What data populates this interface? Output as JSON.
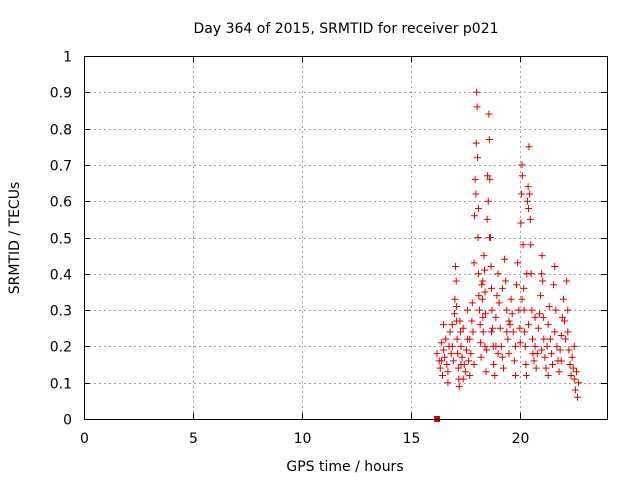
{
  "chart_data": {
    "type": "scatter",
    "title": "Day 364 of 2015, SRMTID for receiver p021",
    "xlabel": "GPS time / hours",
    "ylabel": "SRMTID / TECUs",
    "xlim": [
      0,
      24
    ],
    "ylim": [
      0,
      1
    ],
    "xticks": [
      0,
      5,
      10,
      15,
      20
    ],
    "yticks": [
      0,
      0.1,
      0.2,
      0.3,
      0.4,
      0.5,
      0.6,
      0.7,
      0.8,
      0.9,
      1
    ],
    "xtick_labels": [
      "0",
      "5",
      "10",
      "15",
      "20"
    ],
    "ytick_labels": [
      "0",
      "0.1",
      "0.2",
      "0.3",
      "0.4",
      "0.5",
      "0.6",
      "0.7",
      "0.8",
      "0.9",
      "1"
    ],
    "grid": true,
    "legend": "none",
    "marker": "+",
    "marker_color": "#e00000",
    "anchor_marker": {
      "x": 16.2,
      "y": 0.0,
      "shape": "square"
    },
    "points": [
      [
        16.2,
        0.18
      ],
      [
        16.3,
        0.16
      ],
      [
        16.35,
        0.14
      ],
      [
        16.4,
        0.21
      ],
      [
        16.45,
        0.12
      ],
      [
        16.5,
        0.19
      ],
      [
        16.55,
        0.17
      ],
      [
        16.6,
        0.22
      ],
      [
        16.65,
        0.15
      ],
      [
        16.7,
        0.13
      ],
      [
        16.75,
        0.2
      ],
      [
        16.8,
        0.24
      ],
      [
        16.85,
        0.18
      ],
      [
        16.9,
        0.26
      ],
      [
        16.95,
        0.16
      ],
      [
        17.0,
        0.29
      ],
      [
        17.02,
        0.33
      ],
      [
        17.05,
        0.42
      ],
      [
        17.08,
        0.38
      ],
      [
        17.1,
        0.31
      ],
      [
        17.12,
        0.22
      ],
      [
        17.15,
        0.18
      ],
      [
        17.18,
        0.14
      ],
      [
        17.2,
        0.11
      ],
      [
        17.22,
        0.09
      ],
      [
        17.25,
        0.27
      ],
      [
        17.28,
        0.24
      ],
      [
        17.3,
        0.2
      ],
      [
        17.35,
        0.17
      ],
      [
        17.4,
        0.25
      ],
      [
        17.45,
        0.15
      ],
      [
        17.5,
        0.13
      ],
      [
        17.55,
        0.19
      ],
      [
        17.6,
        0.22
      ],
      [
        17.65,
        0.16
      ],
      [
        17.7,
        0.12
      ],
      [
        17.75,
        0.18
      ],
      [
        17.8,
        0.27
      ],
      [
        17.82,
        0.32
      ],
      [
        17.85,
        0.24
      ],
      [
        17.9,
        0.43
      ],
      [
        17.92,
        0.56
      ],
      [
        17.95,
        0.66
      ],
      [
        17.98,
        0.62
      ],
      [
        18.0,
        0.76
      ],
      [
        18.02,
        0.9
      ],
      [
        18.04,
        0.86
      ],
      [
        18.06,
        0.72
      ],
      [
        18.08,
        0.5
      ],
      [
        18.1,
        0.4
      ],
      [
        18.12,
        0.34
      ],
      [
        18.15,
        0.3
      ],
      [
        18.18,
        0.26
      ],
      [
        18.2,
        0.21
      ],
      [
        18.22,
        0.17
      ],
      [
        18.25,
        0.37
      ],
      [
        18.28,
        0.33
      ],
      [
        18.3,
        0.28
      ],
      [
        18.32,
        0.24
      ],
      [
        18.35,
        0.45
      ],
      [
        18.38,
        0.41
      ],
      [
        18.4,
        0.35
      ],
      [
        18.42,
        0.29
      ],
      [
        18.45,
        0.13
      ],
      [
        18.48,
        0.19
      ],
      [
        18.5,
        0.55
      ],
      [
        18.52,
        0.67
      ],
      [
        18.55,
        0.6
      ],
      [
        18.58,
        0.84
      ],
      [
        18.6,
        0.77
      ],
      [
        18.62,
        0.66
      ],
      [
        18.65,
        0.5
      ],
      [
        18.68,
        0.42
      ],
      [
        18.7,
        0.36
      ],
      [
        18.72,
        0.3
      ],
      [
        18.75,
        0.25
      ],
      [
        18.78,
        0.2
      ],
      [
        18.8,
        0.15
      ],
      [
        18.85,
        0.12
      ],
      [
        18.9,
        0.28
      ],
      [
        18.95,
        0.34
      ],
      [
        19.0,
        0.4
      ],
      [
        19.05,
        0.32
      ],
      [
        19.1,
        0.25
      ],
      [
        19.15,
        0.2
      ],
      [
        19.2,
        0.17
      ],
      [
        19.25,
        0.14
      ],
      [
        19.3,
        0.44
      ],
      [
        19.35,
        0.38
      ],
      [
        19.4,
        0.3
      ],
      [
        19.45,
        0.22
      ],
      [
        19.5,
        0.18
      ],
      [
        19.55,
        0.26
      ],
      [
        19.6,
        0.33
      ],
      [
        19.65,
        0.29
      ],
      [
        19.7,
        0.24
      ],
      [
        19.75,
        0.16
      ],
      [
        19.8,
        0.2
      ],
      [
        19.85,
        0.37
      ],
      [
        19.9,
        0.43
      ],
      [
        19.95,
        0.3
      ],
      [
        20.0,
        0.25
      ],
      [
        20.02,
        0.21
      ],
      [
        20.05,
        0.54
      ],
      [
        20.08,
        0.62
      ],
      [
        20.1,
        0.7
      ],
      [
        20.12,
        0.67
      ],
      [
        20.15,
        0.48
      ],
      [
        20.18,
        0.36
      ],
      [
        20.2,
        0.3
      ],
      [
        20.22,
        0.24
      ],
      [
        20.25,
        0.2
      ],
      [
        20.28,
        0.15
      ],
      [
        20.3,
        0.12
      ],
      [
        20.32,
        0.4
      ],
      [
        20.35,
        0.6
      ],
      [
        20.38,
        0.64
      ],
      [
        20.4,
        0.58
      ],
      [
        20.42,
        0.75
      ],
      [
        20.45,
        0.62
      ],
      [
        20.48,
        0.55
      ],
      [
        20.5,
        0.48
      ],
      [
        20.52,
        0.4
      ],
      [
        20.55,
        0.3
      ],
      [
        20.58,
        0.22
      ],
      [
        20.6,
        0.18
      ],
      [
        20.65,
        0.16
      ],
      [
        20.7,
        0.2
      ],
      [
        20.75,
        0.14
      ],
      [
        20.8,
        0.18
      ],
      [
        20.85,
        0.25
      ],
      [
        20.9,
        0.29
      ],
      [
        20.95,
        0.34
      ],
      [
        21.0,
        0.4
      ],
      [
        21.02,
        0.45
      ],
      [
        21.05,
        0.38
      ],
      [
        21.08,
        0.28
      ],
      [
        21.1,
        0.22
      ],
      [
        21.15,
        0.17
      ],
      [
        21.2,
        0.14
      ],
      [
        21.25,
        0.2
      ],
      [
        21.3,
        0.26
      ],
      [
        21.35,
        0.31
      ],
      [
        21.4,
        0.22
      ],
      [
        21.45,
        0.18
      ],
      [
        21.5,
        0.15
      ],
      [
        21.55,
        0.37
      ],
      [
        21.6,
        0.42
      ],
      [
        21.65,
        0.3
      ],
      [
        21.7,
        0.2
      ],
      [
        21.75,
        0.16
      ],
      [
        21.8,
        0.13
      ],
      [
        21.85,
        0.19
      ],
      [
        21.9,
        0.23
      ],
      [
        21.95,
        0.28
      ],
      [
        22.0,
        0.33
      ],
      [
        22.05,
        0.27
      ],
      [
        22.1,
        0.22
      ],
      [
        22.15,
        0.38
      ],
      [
        22.2,
        0.3
      ],
      [
        22.25,
        0.19
      ],
      [
        22.3,
        0.15
      ],
      [
        22.35,
        0.12
      ],
      [
        22.4,
        0.17
      ],
      [
        22.45,
        0.14
      ],
      [
        22.5,
        0.11
      ],
      [
        22.55,
        0.08
      ],
      [
        22.6,
        0.13
      ],
      [
        22.65,
        0.06
      ],
      [
        22.7,
        0.1
      ],
      [
        16.5,
        0.26
      ],
      [
        16.7,
        0.1
      ],
      [
        17.1,
        0.27
      ],
      [
        17.4,
        0.11
      ],
      [
        17.6,
        0.3
      ],
      [
        17.9,
        0.15
      ],
      [
        18.1,
        0.58
      ],
      [
        18.3,
        0.38
      ],
      [
        18.6,
        0.5
      ],
      [
        18.9,
        0.2
      ],
      [
        19.2,
        0.36
      ],
      [
        19.5,
        0.27
      ],
      [
        19.8,
        0.12
      ],
      [
        20.1,
        0.33
      ],
      [
        20.4,
        0.26
      ],
      [
        20.7,
        0.28
      ],
      [
        21.0,
        0.19
      ],
      [
        21.3,
        0.12
      ],
      [
        21.6,
        0.24
      ],
      [
        21.9,
        0.16
      ],
      [
        22.2,
        0.24
      ],
      [
        22.5,
        0.2
      ],
      [
        16.4,
        0.16
      ],
      [
        16.9,
        0.2
      ],
      [
        17.3,
        0.15
      ],
      [
        17.7,
        0.22
      ],
      [
        18.4,
        0.2
      ],
      [
        18.7,
        0.24
      ],
      [
        19.0,
        0.18
      ],
      [
        19.4,
        0.24
      ]
    ]
  }
}
